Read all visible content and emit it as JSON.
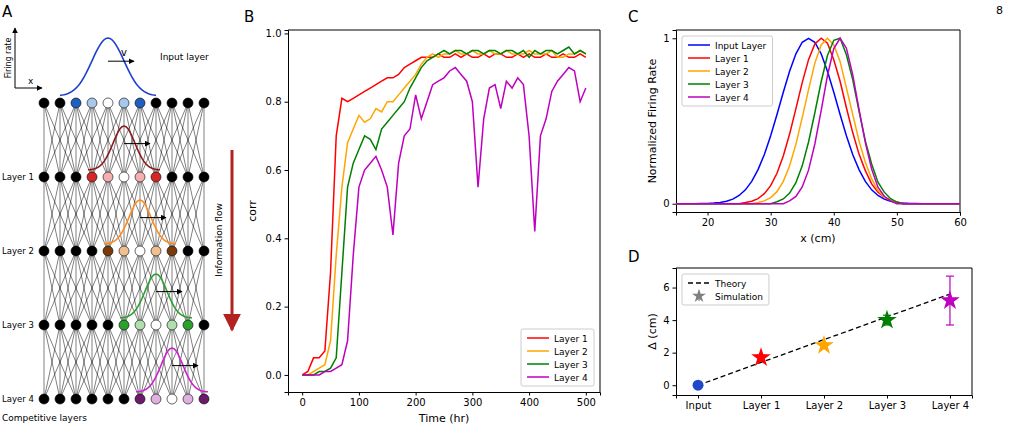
{
  "page_number": "8",
  "diagram": {
    "panel": "A",
    "y_axis_label": "Firing rate",
    "x_axis_label": "x",
    "velocity_label": "v",
    "input_label": "Input layer",
    "layer_labels": [
      "Layer 1",
      "Layer 2",
      "Layer 3",
      "Layer 4"
    ],
    "bottom_label": "Competitive layers",
    "flow_label": "Information flow"
  },
  "chart_data": [
    {
      "panel": "B",
      "type": "line",
      "xlabel": "Time (hr)",
      "ylabel": "corr",
      "x": [
        0,
        10,
        20,
        30,
        40,
        50,
        60,
        70,
        80,
        90,
        100,
        110,
        120,
        130,
        140,
        150,
        160,
        170,
        180,
        190,
        200,
        210,
        220,
        230,
        240,
        250,
        260,
        270,
        280,
        290,
        300,
        310,
        320,
        330,
        340,
        350,
        360,
        370,
        380,
        390,
        400,
        410,
        420,
        430,
        440,
        450,
        460,
        470,
        480,
        490,
        500
      ],
      "series": [
        {
          "name": "Layer 1",
          "color": "#ff0000",
          "values": [
            0.0,
            0.01,
            0.05,
            0.05,
            0.07,
            0.3,
            0.7,
            0.81,
            0.8,
            0.81,
            0.82,
            0.83,
            0.84,
            0.85,
            0.86,
            0.87,
            0.87,
            0.88,
            0.9,
            0.91,
            0.92,
            0.93,
            0.93,
            0.93,
            0.94,
            0.93,
            0.93,
            0.94,
            0.93,
            0.94,
            0.93,
            0.93,
            0.94,
            0.93,
            0.94,
            0.94,
            0.93,
            0.93,
            0.94,
            0.93,
            0.94,
            0.93,
            0.93,
            0.94,
            0.93,
            0.93,
            0.94,
            0.93,
            0.93,
            0.94,
            0.93
          ]
        },
        {
          "name": "Layer 2",
          "color": "#ffa500",
          "values": [
            0,
            0,
            0.01,
            0.02,
            0.03,
            0.1,
            0.35,
            0.55,
            0.68,
            0.72,
            0.76,
            0.74,
            0.75,
            0.78,
            0.77,
            0.8,
            0.8,
            0.82,
            0.84,
            0.86,
            0.88,
            0.91,
            0.93,
            0.94,
            0.93,
            0.94,
            0.94,
            0.95,
            0.94,
            0.94,
            0.95,
            0.94,
            0.94,
            0.95,
            0.94,
            0.94,
            0.95,
            0.94,
            0.94,
            0.94,
            0.95,
            0.94,
            0.94,
            0.94,
            0.95,
            0.93,
            0.93,
            0.94,
            0.94,
            0.95,
            0.94
          ]
        },
        {
          "name": "Layer 3",
          "color": "#008000",
          "values": [
            0,
            0,
            0,
            0.01,
            0.01,
            0.02,
            0.05,
            0.3,
            0.55,
            0.62,
            0.66,
            0.7,
            0.69,
            0.66,
            0.72,
            0.74,
            0.76,
            0.78,
            0.8,
            0.84,
            0.87,
            0.9,
            0.92,
            0.93,
            0.94,
            0.95,
            0.94,
            0.95,
            0.95,
            0.94,
            0.95,
            0.95,
            0.94,
            0.95,
            0.95,
            0.94,
            0.95,
            0.95,
            0.94,
            0.95,
            0.93,
            0.95,
            0.94,
            0.95,
            0.95,
            0.94,
            0.95,
            0.96,
            0.94,
            0.95,
            0.94
          ]
        },
        {
          "name": "Layer 4",
          "color": "#bf00bf",
          "values": [
            0,
            0,
            0,
            0,
            0.01,
            0.01,
            0.02,
            0.03,
            0.1,
            0.35,
            0.55,
            0.6,
            0.62,
            0.64,
            0.6,
            0.55,
            0.41,
            0.62,
            0.7,
            0.72,
            0.82,
            0.75,
            0.8,
            0.85,
            0.86,
            0.87,
            0.89,
            0.9,
            0.88,
            0.86,
            0.8,
            0.55,
            0.75,
            0.84,
            0.85,
            0.78,
            0.86,
            0.84,
            0.87,
            0.85,
            0.7,
            0.42,
            0.7,
            0.75,
            0.83,
            0.86,
            0.88,
            0.9,
            0.89,
            0.8,
            0.84
          ]
        }
      ],
      "xlim": [
        -25,
        525
      ],
      "xticks": [
        0,
        100,
        200,
        300,
        400,
        500
      ],
      "ylim": [
        -0.05,
        1.01
      ],
      "yticks": [
        {
          "value": 0,
          "label": "0.0"
        },
        {
          "value": 0.2,
          "label": "0.2"
        },
        {
          "value": 0.4,
          "label": "0.4"
        },
        {
          "value": 0.6,
          "label": "0.6"
        },
        {
          "value": 0.8,
          "label": "0.8"
        },
        {
          "value": 1,
          "label": "1.0"
        }
      ],
      "grid": false,
      "legend": "lower right"
    },
    {
      "panel": "C",
      "type": "line",
      "xlabel": "x (cm)",
      "ylabel": "Normalized Firing Rate",
      "x": [
        15,
        16,
        17,
        18,
        19,
        20,
        21,
        22,
        23,
        24,
        25,
        26,
        27,
        28,
        29,
        30,
        31,
        32,
        33,
        34,
        35,
        36,
        37,
        38,
        39,
        40,
        41,
        42,
        43,
        44,
        45,
        46,
        47,
        48,
        49,
        50,
        51,
        52,
        53,
        54,
        55,
        56,
        57,
        58,
        59,
        60
      ],
      "series": [
        {
          "name": "Input Layer",
          "color": "#0000ff",
          "values": [
            0,
            0,
            0,
            0,
            0.001,
            0.002,
            0.004,
            0.008,
            0.015,
            0.028,
            0.05,
            0.084,
            0.135,
            0.206,
            0.298,
            0.411,
            0.539,
            0.674,
            0.801,
            0.906,
            0.976,
            1,
            0.976,
            0.906,
            0.801,
            0.674,
            0.539,
            0.411,
            0.298,
            0.206,
            0.135,
            0.084,
            0.05,
            0.028,
            0.015,
            0.008,
            0.004,
            0.002,
            0.001,
            0,
            0,
            0,
            0,
            0,
            0,
            0
          ]
        },
        {
          "name": "Layer 1",
          "color": "#ff0000",
          "values": [
            0,
            0,
            0,
            0,
            0,
            0,
            0,
            0,
            0,
            0,
            0,
            0.007,
            0.015,
            0.031,
            0.061,
            0.109,
            0.184,
            0.288,
            0.421,
            0.575,
            0.732,
            0.871,
            0.966,
            1,
            0.97,
            0.87,
            0.74,
            0.58,
            0.43,
            0.3,
            0.2,
            0.12,
            0.07,
            0.04,
            0.02,
            0.01,
            0,
            0,
            0,
            0,
            0,
            0,
            0,
            0,
            0,
            0
          ]
        },
        {
          "name": "Layer 2",
          "color": "#ffa500",
          "values": [
            0,
            0,
            0,
            0,
            0,
            0,
            0,
            0,
            0,
            0,
            0,
            0,
            0,
            0.007,
            0.017,
            0.037,
            0.073,
            0.135,
            0.23,
            0.36,
            0.52,
            0.69,
            0.85,
            0.96,
            1,
            0.96,
            0.86,
            0.7,
            0.54,
            0.38,
            0.25,
            0.15,
            0.08,
            0.04,
            0.02,
            0.01,
            0,
            0,
            0,
            0,
            0,
            0,
            0,
            0,
            0,
            0
          ]
        },
        {
          "name": "Layer 3",
          "color": "#008000",
          "values": [
            0,
            0,
            0,
            0,
            0,
            0,
            0,
            0,
            0,
            0,
            0,
            0,
            0,
            0,
            0,
            0,
            0.012,
            0.029,
            0.064,
            0.127,
            0.229,
            0.373,
            0.55,
            0.737,
            0.896,
            0.988,
            1,
            0.9,
            0.75,
            0.56,
            0.38,
            0.24,
            0.13,
            0.07,
            0.03,
            0.01,
            0,
            0,
            0,
            0,
            0,
            0,
            0,
            0,
            0,
            0
          ]
        },
        {
          "name": "Layer 4",
          "color": "#bf00bf",
          "values": [
            0,
            0,
            0,
            0,
            0,
            0,
            0,
            0,
            0,
            0,
            0,
            0,
            0,
            0,
            0,
            0,
            0,
            0,
            0.017,
            0.044,
            0.101,
            0.203,
            0.361,
            0.563,
            0.775,
            0.938,
            1,
            0.94,
            0.78,
            0.57,
            0.37,
            0.21,
            0.1,
            0.045,
            0.017,
            0,
            0,
            0,
            0,
            0,
            0,
            0,
            0,
            0,
            0,
            0
          ]
        }
      ],
      "xlim": [
        15,
        60
      ],
      "xticks": [
        20,
        30,
        40,
        50,
        60
      ],
      "ylim": [
        -0.05,
        1.05
      ],
      "yticks": [
        0,
        1
      ],
      "grid": false,
      "legend": "upper left"
    },
    {
      "panel": "D",
      "type": "scatter",
      "ylabel": "Δ (cm)",
      "categories": [
        "Input",
        "Layer 1",
        "Layer 2",
        "Layer 3",
        "Layer 4"
      ],
      "series": [
        {
          "name": "Theory",
          "type": "line",
          "line_style": "dashed",
          "color": "#000000",
          "values": [
            0,
            1.4,
            2.8,
            4.2,
            5.6
          ]
        },
        {
          "name": "Simulation",
          "type": "scatter",
          "marker": "star",
          "color": "#808080",
          "colors": [
            null,
            "#ff0000",
            "#ffa500",
            "#008000",
            "#bf00bf"
          ],
          "values": [
            null,
            1.7,
            2.45,
            4.0,
            5.2
          ],
          "errors": [
            null,
            0.15,
            0.12,
            0.3,
            1.5
          ]
        },
        {
          "type": "scatter",
          "marker": "circle",
          "color": "#1f49c8",
          "values": [
            0,
            null,
            null,
            null,
            null
          ]
        }
      ],
      "ylim": [
        -0.6,
        7.2
      ],
      "yticks": [
        0,
        2,
        4,
        6
      ],
      "grid": false,
      "legend": "upper left"
    }
  ]
}
